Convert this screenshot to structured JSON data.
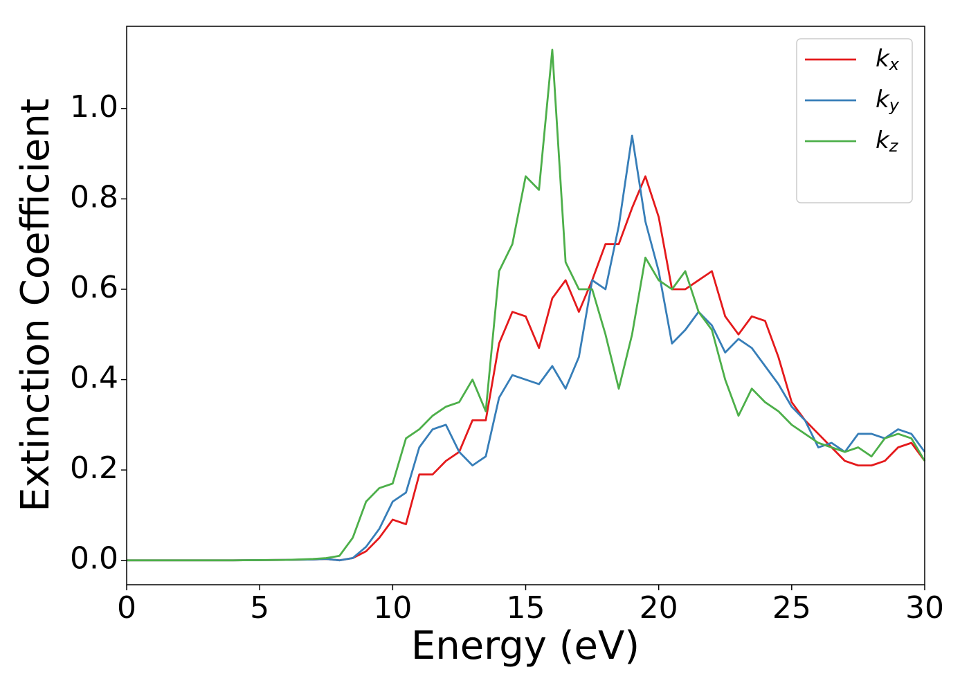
{
  "chart_data": {
    "type": "line",
    "xlabel": "Energy (eV)",
    "ylabel": "Extinction Coefficient",
    "x": [
      0,
      2,
      4,
      6,
      7,
      7.5,
      8,
      8.5,
      9,
      9.5,
      10,
      10.5,
      11,
      11.5,
      12,
      12.5,
      13,
      13.5,
      14,
      14.5,
      15,
      15.5,
      16,
      16.5,
      17,
      17.5,
      18,
      18.5,
      19,
      19.5,
      20,
      20.5,
      21,
      21.5,
      22,
      22.5,
      23,
      23.5,
      24,
      24.5,
      25,
      25.5,
      26,
      26.5,
      27,
      27.5,
      28,
      28.5,
      29,
      29.5,
      30
    ],
    "series": [
      {
        "name": "kx",
        "color": "#e41a1c",
        "values": [
          0,
          0,
          0,
          0.001,
          0.002,
          0.003,
          0.0,
          0.005,
          0.02,
          0.05,
          0.09,
          0.08,
          0.19,
          0.19,
          0.22,
          0.24,
          0.31,
          0.31,
          0.48,
          0.55,
          0.54,
          0.47,
          0.58,
          0.62,
          0.55,
          0.62,
          0.7,
          0.7,
          0.78,
          0.85,
          0.76,
          0.6,
          0.6,
          0.62,
          0.64,
          0.54,
          0.5,
          0.54,
          0.53,
          0.45,
          0.35,
          0.31,
          0.28,
          0.25,
          0.22,
          0.21,
          0.21,
          0.22,
          0.25,
          0.26,
          0.22
        ]
      },
      {
        "name": "ky",
        "color": "#377eb8",
        "values": [
          0,
          0,
          0,
          0.001,
          0.002,
          0.003,
          0.0,
          0.005,
          0.03,
          0.07,
          0.13,
          0.15,
          0.25,
          0.29,
          0.3,
          0.24,
          0.21,
          0.23,
          0.36,
          0.41,
          0.4,
          0.39,
          0.43,
          0.38,
          0.45,
          0.62,
          0.6,
          0.74,
          0.94,
          0.75,
          0.64,
          0.48,
          0.51,
          0.55,
          0.52,
          0.46,
          0.49,
          0.47,
          0.43,
          0.39,
          0.34,
          0.31,
          0.25,
          0.26,
          0.24,
          0.28,
          0.28,
          0.27,
          0.29,
          0.28,
          0.24
        ]
      },
      {
        "name": "kz",
        "color": "#4daf4a",
        "values": [
          0,
          0,
          0,
          0.001,
          0.003,
          0.005,
          0.01,
          0.05,
          0.13,
          0.16,
          0.17,
          0.27,
          0.29,
          0.32,
          0.34,
          0.35,
          0.4,
          0.33,
          0.64,
          0.7,
          0.85,
          0.82,
          1.13,
          0.66,
          0.6,
          0.6,
          0.5,
          0.38,
          0.5,
          0.67,
          0.62,
          0.6,
          0.64,
          0.55,
          0.51,
          0.4,
          0.32,
          0.38,
          0.35,
          0.33,
          0.3,
          0.28,
          0.26,
          0.25,
          0.24,
          0.25,
          0.23,
          0.27,
          0.28,
          0.27,
          0.22
        ]
      }
    ],
    "xlim": [
      0,
      30
    ],
    "xticks": [
      0,
      5,
      10,
      15,
      20,
      25,
      30
    ],
    "ylim": [
      -0.054,
      1.182
    ],
    "yticks": [
      {
        "value": 0,
        "label": "0.0"
      },
      0.2,
      0.4,
      0.6,
      0.8,
      {
        "value": 1,
        "label": "1.0"
      }
    ],
    "legend": "upper right"
  }
}
